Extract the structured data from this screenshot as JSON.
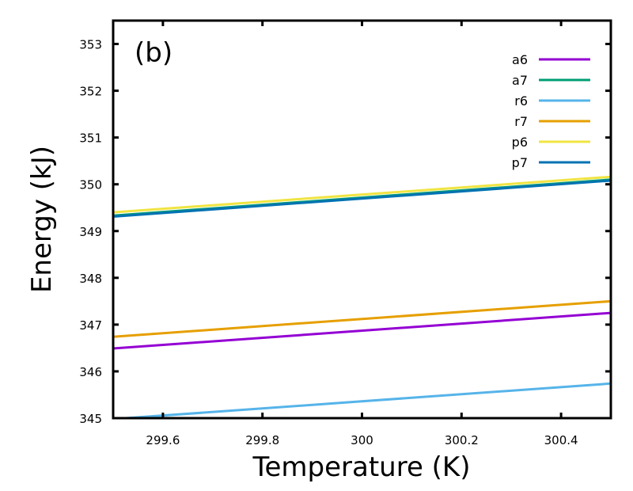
{
  "chart_data": {
    "type": "line",
    "panel_label": "(b)",
    "xlabel": "Temperature (K)",
    "ylabel": "Energy (kJ)",
    "xlim": [
      299.5,
      300.5
    ],
    "ylim": [
      345,
      353.5
    ],
    "xticks": [
      299.6,
      299.8,
      300,
      300.2,
      300.4
    ],
    "xtick_labels": [
      "299.6",
      "299.8",
      "300",
      "300.2",
      "300.4"
    ],
    "yticks": [
      345,
      346,
      347,
      348,
      349,
      350,
      351,
      352,
      353
    ],
    "ytick_labels": [
      "345",
      "346",
      "347",
      "348",
      "349",
      "350",
      "351",
      "352",
      "353"
    ],
    "legend_position": "top-right",
    "series": [
      {
        "name": "a6",
        "color": "#9400d3",
        "x": [
          299.5,
          300.5
        ],
        "y": [
          346.49,
          347.25
        ]
      },
      {
        "name": "a7",
        "color": "#009e73",
        "x": [
          299.5,
          300.5
        ],
        "y": [
          349.33,
          350.1
        ]
      },
      {
        "name": "r6",
        "color": "#56b4e9",
        "x": [
          299.5,
          300.5
        ],
        "y": [
          344.98,
          345.74
        ]
      },
      {
        "name": "r7",
        "color": "#e69f00",
        "x": [
          299.5,
          300.5
        ],
        "y": [
          346.74,
          347.5
        ]
      },
      {
        "name": "p6",
        "color": "#f0e442",
        "x": [
          299.5,
          300.5
        ],
        "y": [
          349.4,
          350.16
        ]
      },
      {
        "name": "p7",
        "color": "#0072b2",
        "x": [
          299.5,
          300.5
        ],
        "y": [
          349.31,
          350.08
        ]
      }
    ]
  }
}
